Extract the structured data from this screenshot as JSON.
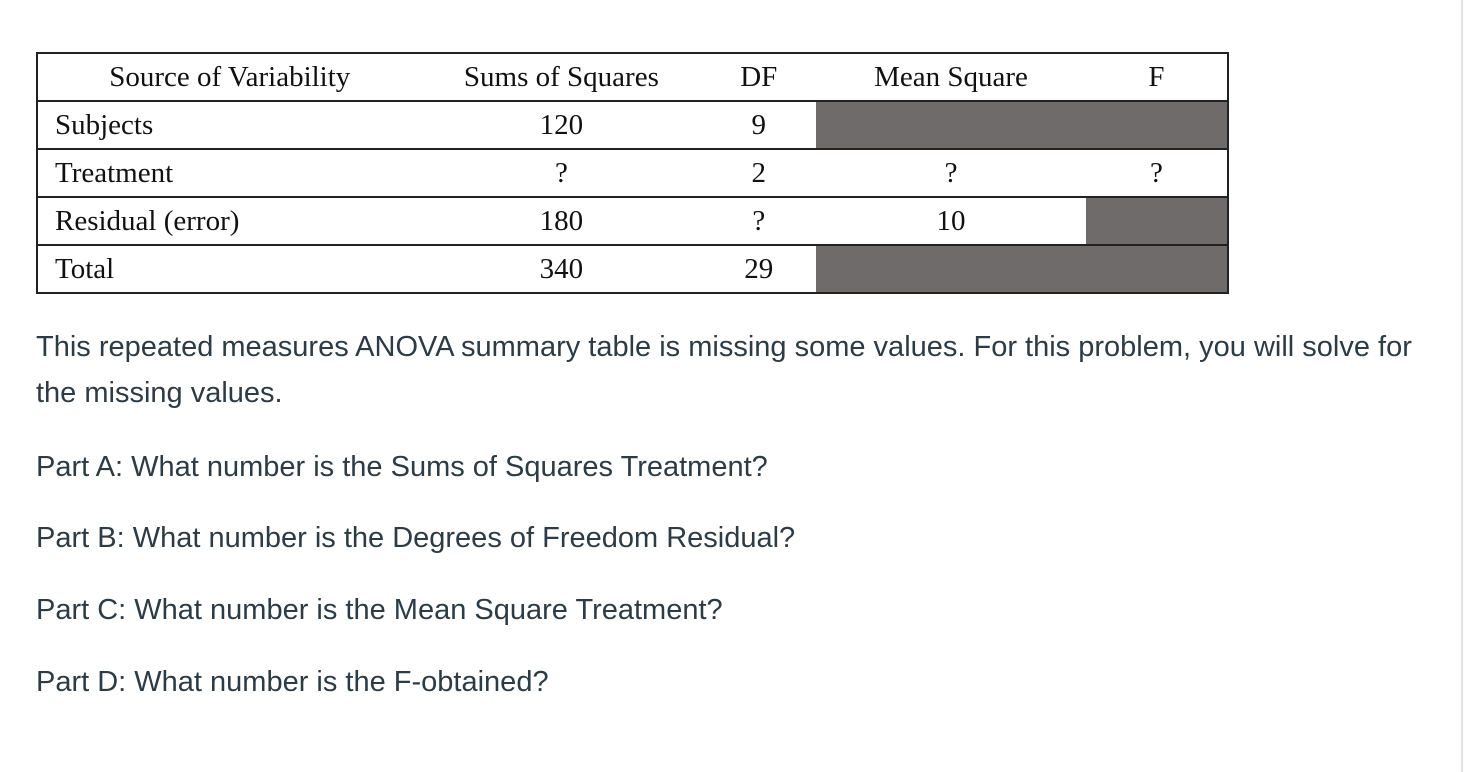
{
  "table": {
    "headers": {
      "source": "Source of Variability",
      "ss": "Sums of Squares",
      "df": "DF",
      "ms": "Mean Square",
      "f": "F"
    },
    "rows": [
      {
        "source": "Subjects",
        "ss": "120",
        "df": "9",
        "ms": "",
        "f": ""
      },
      {
        "source": "Treatment",
        "ss": "?",
        "df": "2",
        "ms": "?",
        "f": "?"
      },
      {
        "source": "Residual (error)",
        "ss": "180",
        "df": "?",
        "ms": "10",
        "f": ""
      },
      {
        "source": "Total",
        "ss": "340",
        "df": "29",
        "ms": "",
        "f": ""
      }
    ],
    "shade_color": "#6f6b6a"
  },
  "text": {
    "intro": "This repeated measures ANOVA summary table is missing some values.  For this problem, you will solve for the missing values.",
    "part_a": "Part A:  What number is the Sums of Squares Treatment?",
    "part_b": "Part B:  What number is the Degrees of Freedom Residual?",
    "part_c": "Part C: What number is the Mean Square Treatment?",
    "part_d": "Part D:  What number is the F-obtained?"
  }
}
